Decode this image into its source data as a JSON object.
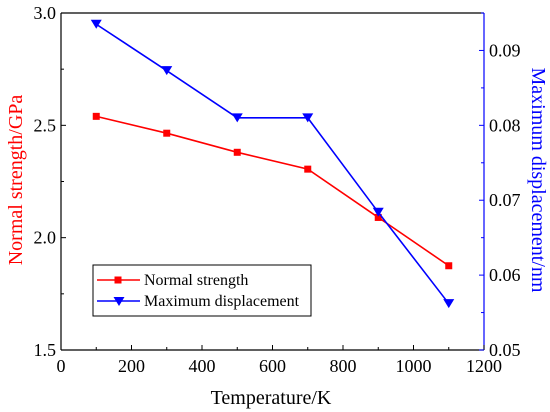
{
  "chart_data": {
    "type": "line",
    "xlabel": "Temperature/K",
    "ylabel_left": "Normal strength/GPa",
    "ylabel_right": "Maximum displacement/nm",
    "xlim": [
      0,
      1200
    ],
    "ylim_left": [
      1.5,
      3.0
    ],
    "ylim_right": [
      0.05,
      0.095
    ],
    "x_ticks": [
      0,
      200,
      400,
      600,
      800,
      1000,
      1200
    ],
    "y_left_ticks": [
      1.5,
      2.0,
      2.5,
      3.0
    ],
    "y_right_ticks": [
      0.05,
      0.06,
      0.07,
      0.08,
      0.09
    ],
    "x_tick_labels": [
      "0",
      "200",
      "400",
      "600",
      "800",
      "1000",
      "1200"
    ],
    "y_left_tick_labels": [
      "1.5",
      "2.0",
      "2.5",
      "3.0"
    ],
    "y_right_tick_labels": [
      "0.05",
      "0.06",
      "0.07",
      "0.08",
      "0.09"
    ],
    "grid": false,
    "legend_position": "lower-left",
    "series": [
      {
        "name": "Normal strength",
        "axis": "left",
        "color": "#ff0000",
        "marker": "square",
        "x": [
          100,
          300,
          500,
          700,
          900,
          1100
        ],
        "values": [
          2.54,
          2.465,
          2.38,
          2.305,
          2.09,
          1.875
        ]
      },
      {
        "name": "Maximum displacement",
        "axis": "right",
        "color": "#0000ff",
        "marker": "triangle-down",
        "x": [
          100,
          300,
          500,
          700,
          900,
          1100
        ],
        "values": [
          0.0935,
          0.0873,
          0.081,
          0.081,
          0.0684,
          0.0562
        ]
      }
    ]
  }
}
